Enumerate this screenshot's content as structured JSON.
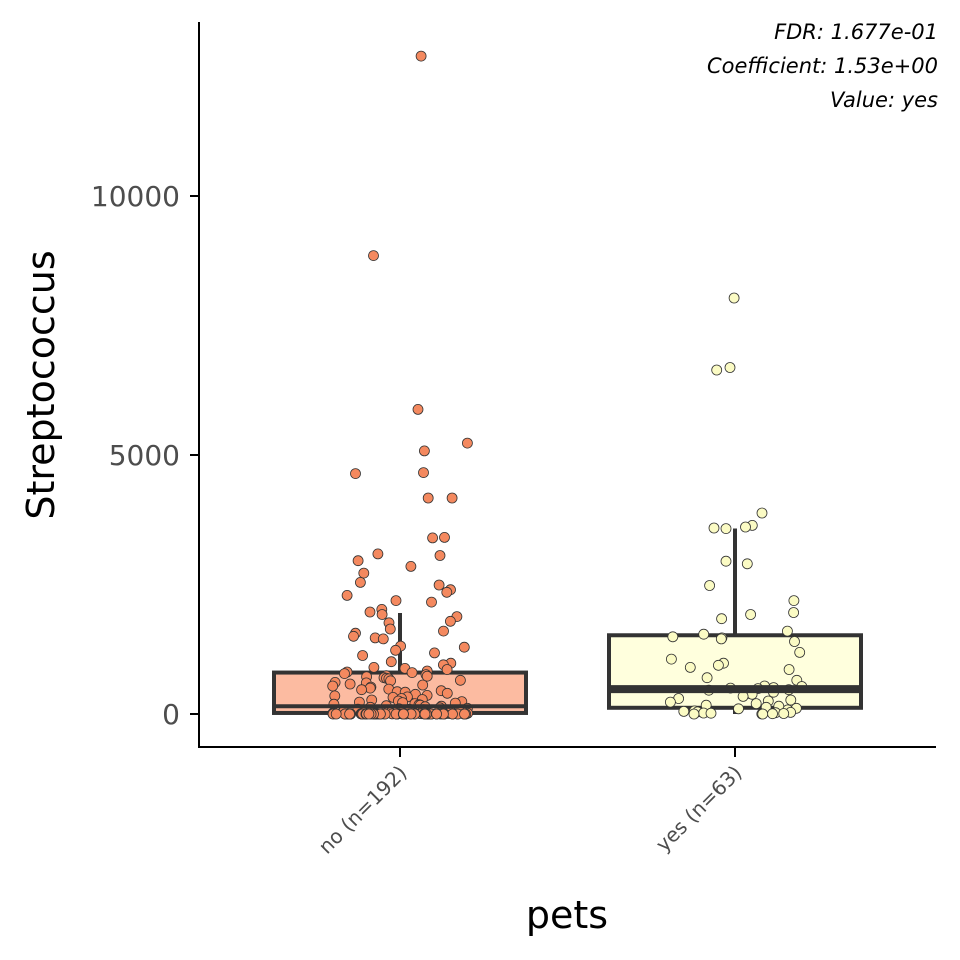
{
  "chart_data": {
    "type": "box",
    "xlabel": "pets",
    "ylabel": "Streptococcus",
    "ylim": [
      -600,
      13000
    ],
    "yticks": [
      0,
      5000,
      10000
    ],
    "ytick_labels": [
      "0",
      "5000",
      "10000"
    ],
    "categories": [
      "no (n=192)",
      "yes (n=63)"
    ],
    "annotations": [
      "FDR: 1.677e-01",
      "Coefficient: 1.53e+00",
      "Value: yes"
    ],
    "colors": {
      "no": "#fcbba1",
      "yes": "#ffffdd",
      "no_points": "#f4895f",
      "yes_points": "#fbfbc4",
      "box_stroke": "#333333"
    },
    "boxes": [
      {
        "category": "no (n=192)",
        "min": 0,
        "q1": 20,
        "median": 150,
        "q3": 800,
        "max": 1950
      },
      {
        "category": "yes (n=63)",
        "min": 0,
        "q1": 120,
        "median": 480,
        "q3": 1520,
        "max": 3580
      }
    ],
    "points": [
      {
        "category": "no (n=192)",
        "values": [
          12700,
          8850,
          5880,
          5230,
          5080,
          4660,
          4640,
          4170,
          4170,
          3410,
          3400,
          3090,
          3060,
          2960,
          2850,
          2720,
          2540,
          2490,
          2400,
          2350,
          2290,
          2190,
          2160,
          2020,
          1970,
          1920,
          1880,
          1790,
          1760,
          1640,
          1600,
          1560,
          1500,
          1470,
          1450,
          1310,
          1290,
          1230,
          1180,
          1130,
          1010,
          980,
          950,
          900,
          880,
          860,
          830,
          810,
          800,
          780,
          760,
          740,
          730,
          720,
          700,
          690,
          680,
          650,
          640,
          610,
          600,
          580,
          560,
          540,
          520,
          500,
          480,
          470,
          450,
          430,
          420,
          400,
          380,
          360,
          350,
          330,
          320,
          300,
          280,
          270,
          250,
          240,
          230,
          220,
          210,
          200,
          190,
          180,
          170,
          160,
          150,
          140,
          130,
          120,
          110,
          100,
          95,
          90,
          85,
          80,
          75,
          70,
          65,
          60,
          55,
          50,
          45,
          40,
          38,
          35,
          32,
          30,
          28,
          25,
          22,
          20,
          18,
          16,
          15,
          14,
          12,
          10,
          10,
          9,
          8,
          8,
          7,
          6,
          6,
          5,
          5,
          4,
          4,
          3,
          3,
          3,
          2,
          2,
          2,
          1,
          1,
          1,
          0,
          0,
          0,
          0,
          0,
          0,
          0,
          0,
          0,
          0,
          0,
          0,
          0,
          0,
          0,
          0,
          0,
          0,
          0,
          0,
          0,
          0,
          0,
          0,
          0,
          0,
          0,
          0,
          0,
          0,
          0,
          0,
          0,
          0,
          0,
          0,
          0,
          0,
          0,
          0,
          0,
          0,
          0,
          0,
          0,
          0,
          0,
          0,
          0,
          0,
          0,
          0,
          0
        ]
      },
      {
        "category": "yes (n=63)",
        "values": [
          8030,
          6690,
          6640,
          3880,
          3640,
          3610,
          3590,
          3580,
          2950,
          2900,
          2480,
          2190,
          1960,
          1920,
          1840,
          1600,
          1540,
          1490,
          1470,
          1450,
          1400,
          1190,
          1060,
          980,
          940,
          900,
          860,
          700,
          650,
          540,
          530,
          510,
          500,
          490,
          470,
          460,
          420,
          400,
          380,
          340,
          300,
          270,
          250,
          230,
          200,
          170,
          150,
          130,
          110,
          100,
          80,
          60,
          50,
          40,
          30,
          25,
          20,
          15,
          10,
          5,
          2,
          0,
          0
        ]
      }
    ]
  }
}
